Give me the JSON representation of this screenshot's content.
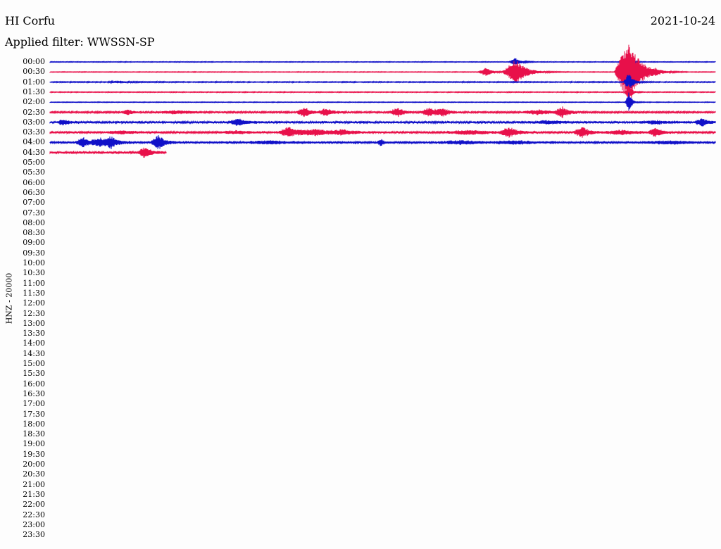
{
  "header": {
    "station": "HI Corfu",
    "date": "2021-10-24",
    "filter": "Applied filter: WWSSN-SP"
  },
  "chart_data": {
    "type": "line",
    "title": "HI Corfu",
    "date": "2021-10-24",
    "filter": "Applied filter: WWSSN-SP",
    "ylabel": "HNZ - 20000",
    "line_interval_minutes": 30,
    "row_labels": [
      "00:00",
      "00:30",
      "01:00",
      "01:30",
      "02:00",
      "02:30",
      "03:00",
      "03:30",
      "04:00",
      "04:30",
      "05:00",
      "05:30",
      "06:00",
      "06:30",
      "07:00",
      "07:30",
      "08:00",
      "08:30",
      "09:00",
      "09:30",
      "10:00",
      "10:30",
      "11:00",
      "11:30",
      "12:00",
      "12:30",
      "13:00",
      "13:30",
      "14:00",
      "14:30",
      "15:00",
      "15:30",
      "16:00",
      "16:30",
      "17:00",
      "17:30",
      "18:00",
      "18:30",
      "19:00",
      "19:30",
      "20:00",
      "20:30",
      "21:00",
      "21:30",
      "22:00",
      "22:30",
      "23:00",
      "23:30"
    ],
    "trace_colors": [
      "#1010c8",
      "#e8104a"
    ],
    "traces": [
      {
        "row": "00:00",
        "end_fraction": 1.0,
        "noise": 0.4,
        "events": [
          {
            "x": 0.7,
            "amp": 6,
            "width": 0.01
          },
          {
            "x": 0.873,
            "amp": 5,
            "width": 0.006
          }
        ]
      },
      {
        "row": "00:30",
        "end_fraction": 1.0,
        "noise": 0.4,
        "events": [
          {
            "x": 0.655,
            "amp": 6,
            "width": 0.012
          },
          {
            "x": 0.7,
            "amp": 18,
            "width": 0.02
          },
          {
            "x": 0.87,
            "amp": 48,
            "width": 0.022
          },
          {
            "x": 0.91,
            "amp": 2,
            "width": 0.008
          }
        ]
      },
      {
        "row": "01:00",
        "end_fraction": 1.0,
        "noise": 0.6,
        "events": [
          {
            "x": 0.105,
            "amp": 1.5,
            "width": 0.02
          },
          {
            "x": 0.87,
            "amp": 14,
            "width": 0.008
          }
        ]
      },
      {
        "row": "01:30",
        "end_fraction": 1.0,
        "noise": 0.5,
        "events": [
          {
            "x": 0.87,
            "amp": 12,
            "width": 0.006
          }
        ]
      },
      {
        "row": "02:00",
        "end_fraction": 1.0,
        "noise": 0.4,
        "events": [
          {
            "x": 0.87,
            "amp": 14,
            "width": 0.006
          }
        ]
      },
      {
        "row": "02:30",
        "end_fraction": 1.0,
        "noise": 1.0,
        "events": [
          {
            "x": 0.117,
            "amp": 4,
            "width": 0.01
          },
          {
            "x": 0.19,
            "amp": 2,
            "width": 0.04
          },
          {
            "x": 0.382,
            "amp": 7,
            "width": 0.012
          },
          {
            "x": 0.415,
            "amp": 6,
            "width": 0.012
          },
          {
            "x": 0.522,
            "amp": 7,
            "width": 0.012
          },
          {
            "x": 0.57,
            "amp": 6,
            "width": 0.014
          },
          {
            "x": 0.59,
            "amp": 5,
            "width": 0.014
          },
          {
            "x": 0.735,
            "amp": 3,
            "width": 0.03
          },
          {
            "x": 0.77,
            "amp": 7,
            "width": 0.012
          }
        ]
      },
      {
        "row": "03:00",
        "end_fraction": 1.0,
        "noise": 1.3,
        "events": [
          {
            "x": 0.02,
            "amp": 4,
            "width": 0.01
          },
          {
            "x": 0.283,
            "amp": 5,
            "width": 0.014
          },
          {
            "x": 0.75,
            "amp": 2,
            "width": 0.03
          },
          {
            "x": 0.91,
            "amp": 2,
            "width": 0.03
          },
          {
            "x": 0.98,
            "amp": 5,
            "width": 0.012
          }
        ]
      },
      {
        "row": "03:30",
        "end_fraction": 1.0,
        "noise": 1.1,
        "events": [
          {
            "x": 0.108,
            "amp": 2,
            "width": 0.03
          },
          {
            "x": 0.28,
            "amp": 2,
            "width": 0.03
          },
          {
            "x": 0.358,
            "amp": 8,
            "width": 0.014
          },
          {
            "x": 0.4,
            "amp": 4,
            "width": 0.04
          },
          {
            "x": 0.44,
            "amp": 3,
            "width": 0.02
          },
          {
            "x": 0.63,
            "amp": 3,
            "width": 0.04
          },
          {
            "x": 0.69,
            "amp": 7,
            "width": 0.016
          },
          {
            "x": 0.8,
            "amp": 8,
            "width": 0.014
          },
          {
            "x": 0.86,
            "amp": 3,
            "width": 0.03
          },
          {
            "x": 0.91,
            "amp": 6,
            "width": 0.012
          }
        ]
      },
      {
        "row": "04:00",
        "end_fraction": 1.0,
        "noise": 1.3,
        "events": [
          {
            "x": 0.05,
            "amp": 7,
            "width": 0.012
          },
          {
            "x": 0.075,
            "amp": 6,
            "width": 0.014
          },
          {
            "x": 0.092,
            "amp": 7,
            "width": 0.012
          },
          {
            "x": 0.163,
            "amp": 10,
            "width": 0.012
          },
          {
            "x": 0.33,
            "amp": 2,
            "width": 0.04
          },
          {
            "x": 0.497,
            "amp": 5,
            "width": 0.006
          },
          {
            "x": 0.62,
            "amp": 2,
            "width": 0.04
          },
          {
            "x": 0.7,
            "amp": 2,
            "width": 0.04
          },
          {
            "x": 0.93,
            "amp": 2,
            "width": 0.04
          }
        ]
      },
      {
        "row": "04:30",
        "end_fraction": 0.175,
        "noise": 1.4,
        "events": [
          {
            "x": 0.143,
            "amp": 7,
            "width": 0.012
          }
        ]
      }
    ]
  }
}
